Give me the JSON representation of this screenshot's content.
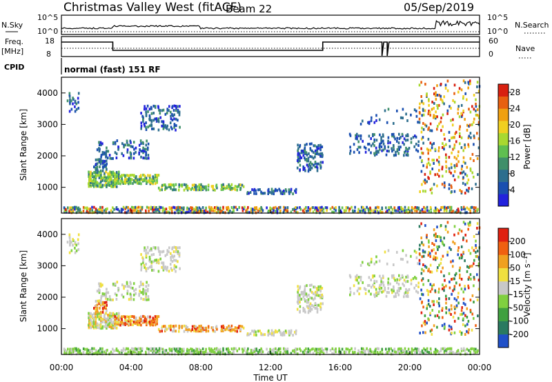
{
  "header": {
    "title": "Christmas Valley West (fitACF)",
    "beam": "Beam 22",
    "date": "05/Sep/2019"
  },
  "top_panels": {
    "nsky_label": "N.Sky",
    "nsky_ticks_left": [
      "10^5",
      "10^0"
    ],
    "nsearch_label": "N.Search",
    "nsearch_ticks_right": [
      "10^5",
      "10^0"
    ],
    "freq_label": "Freq.",
    "freq_unit": "[MHz]",
    "freq_ticks": [
      "18",
      "8"
    ],
    "nave_label": "Nave",
    "nave_ticks": [
      "60",
      "0"
    ],
    "cpid_label": "CPID",
    "cpid_text": "normal (fast) 151 RF"
  },
  "colors": {
    "power_scale": [
      "#2222dd",
      "#1a4fb0",
      "#2d6e8e",
      "#3f8f6a",
      "#5fbf50",
      "#a8d830",
      "#f0d020",
      "#f0a010",
      "#e86010",
      "#d82010"
    ],
    "velocity_scale": [
      "#2050c8",
      "#2a7a60",
      "#40a040",
      "#80d040",
      "#c8c8c8",
      "#f0e040",
      "#f0a020",
      "#f06010",
      "#e02010"
    ]
  },
  "chart_data": [
    {
      "type": "heatmap",
      "name": "power",
      "ylabel": "Slant Range [km]",
      "yticks": [
        "4000",
        "3000",
        "2000",
        "1000"
      ],
      "ylim": [
        180,
        4500
      ],
      "colorbar_label": "Power [dB]",
      "colorbar_ticks": [
        "28",
        "24",
        "20",
        "16",
        "12",
        "8",
        "4"
      ],
      "color_range": [
        0,
        30
      ]
    },
    {
      "type": "heatmap",
      "name": "velocity",
      "ylabel": "Slant Range [km]",
      "yticks": [
        "4000",
        "3000",
        "2000",
        "1000"
      ],
      "ylim": [
        180,
        4500
      ],
      "colorbar_label": "Velocity [m s⁻¹]",
      "colorbar_ticks": [
        "200",
        "100",
        "50",
        "15",
        "-15",
        "-50",
        "-100",
        "-200"
      ],
      "color_range": [
        -250,
        250
      ]
    }
  ],
  "xaxis": {
    "label": "Time UT",
    "ticks": [
      "00:00",
      "04:00",
      "08:00",
      "12:00",
      "16:00",
      "20:00",
      "00:00"
    ]
  }
}
